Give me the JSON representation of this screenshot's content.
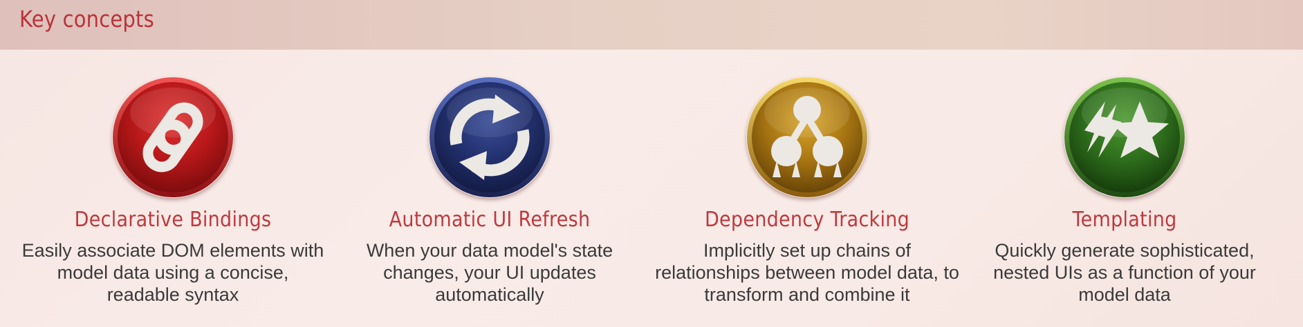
{
  "header": {
    "title": "Key concepts"
  },
  "concepts": [
    {
      "title": "Declarative Bindings",
      "description": "Easily associate DOM elements with model data using a concise, readable syntax",
      "icon": "link-icon",
      "color": "#b71a1e"
    },
    {
      "title": "Automatic UI Refresh",
      "description": "When your data model's state changes, your UI updates automatically",
      "icon": "refresh-icon",
      "color": "#1f2f6b"
    },
    {
      "title": "Dependency Tracking",
      "description": "Implicitly set up chains of relationships between model data, to transform and combine it",
      "icon": "dependency-tree-icon",
      "color": "#a87612"
    },
    {
      "title": "Templating",
      "description": "Quickly generate sophisticated, nested UIs as a function of your model data",
      "icon": "star-icon",
      "color": "#2e6e1c"
    }
  ]
}
